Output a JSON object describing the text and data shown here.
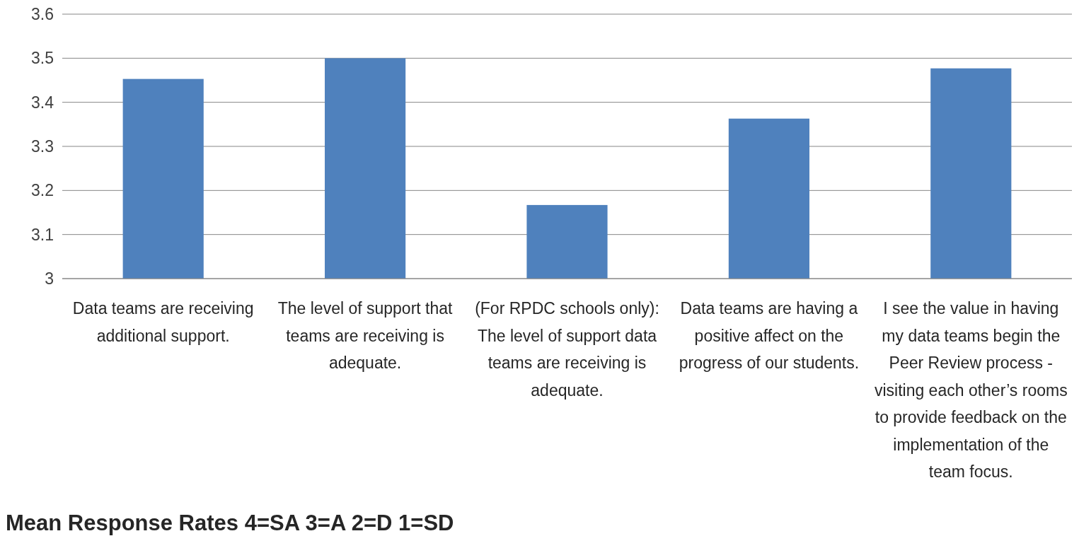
{
  "chart_data": {
    "type": "bar",
    "title": "Mean Response Rates 4=SA 3=A 2=D 1=SD",
    "categories": [
      "Data teams are receiving additional support.",
      "The level of support that teams are receiving is adequate.",
      "(For RPDC schools only): The level of support data teams are receiving is adequate.",
      "Data teams are having a positive affect on the progress of our students.",
      "I see the value in having my data teams begin the Peer Review process - visiting each other’s rooms to provide feedback on the implementation of the team focus."
    ],
    "values": [
      3.453,
      3.5,
      3.167,
      3.363,
      3.477
    ],
    "color": "#4f81bd",
    "ylim": [
      3,
      3.6
    ],
    "yticks": [
      3,
      3.1,
      3.2,
      3.3,
      3.4,
      3.5,
      3.6
    ],
    "grid": "y"
  }
}
